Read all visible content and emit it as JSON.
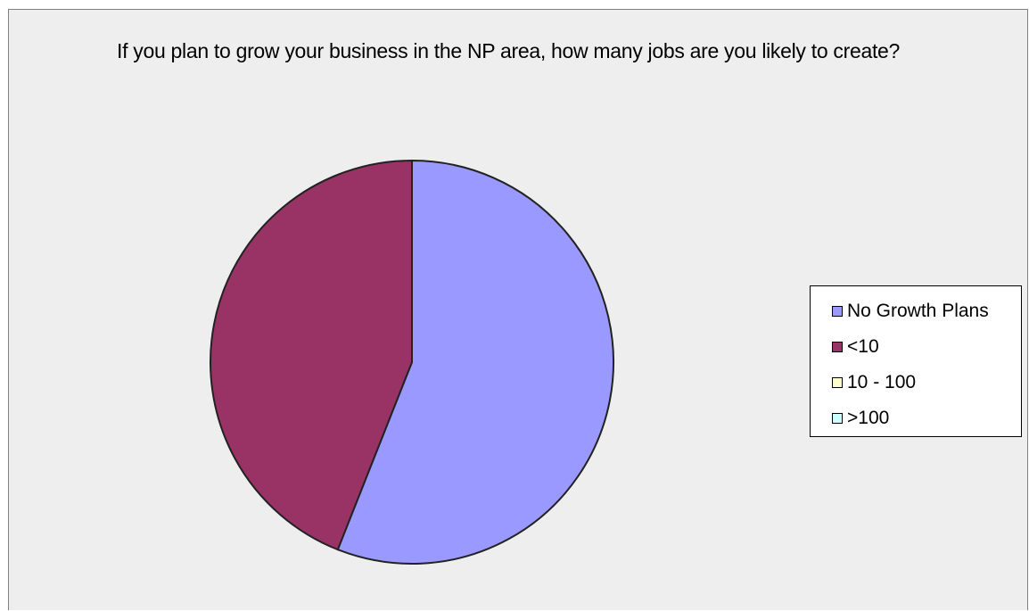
{
  "chart_data": {
    "type": "pie",
    "title": "If you plan to grow your business in the NP area, how many jobs are you likely to create?",
    "categories": [
      "No Growth Plans",
      "<10",
      "10 - 100",
      ">100"
    ],
    "values": [
      56,
      44,
      0,
      0
    ],
    "colors": [
      "#9999ff",
      "#993366",
      "#ffffcc",
      "#ccffff"
    ],
    "legend_position": "right"
  }
}
